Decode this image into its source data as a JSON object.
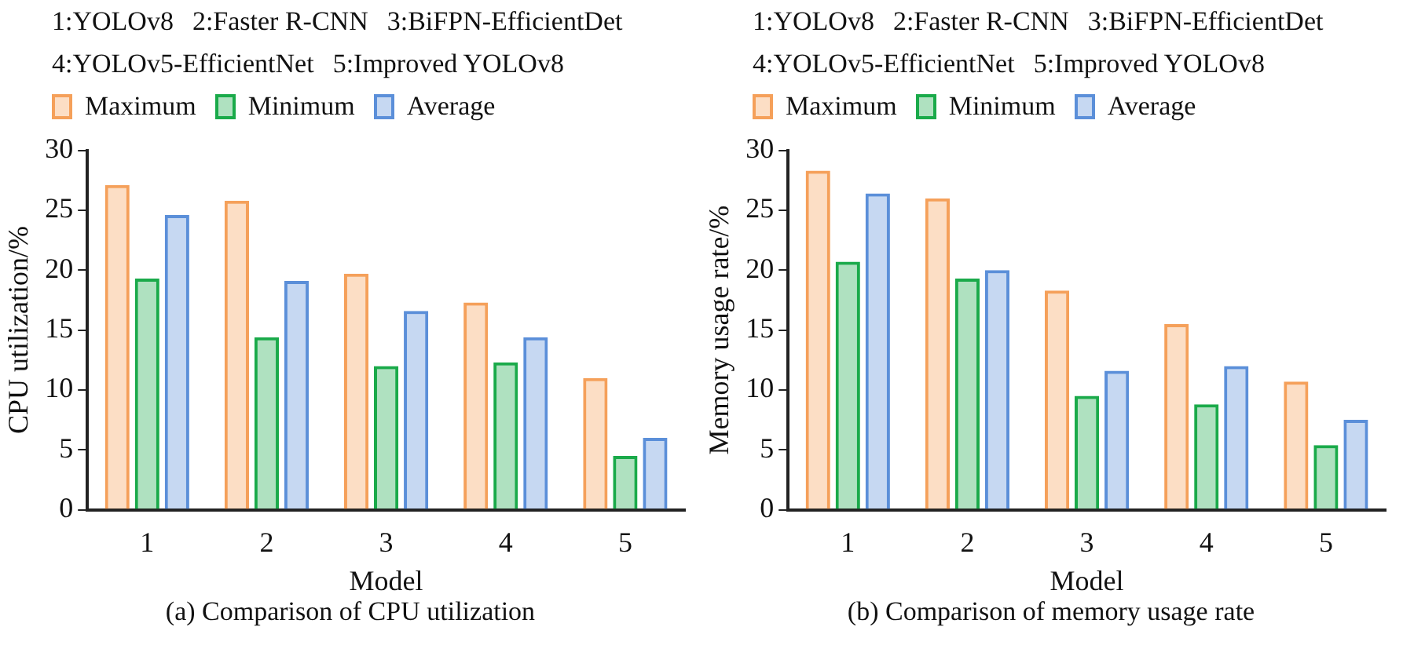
{
  "chart_data": [
    {
      "type": "bar",
      "title": "(a) Comparison of CPU utilization",
      "xlabel": "Model",
      "ylabel": "CPU utilization/%",
      "categories": [
        "1",
        "2",
        "3",
        "4",
        "5"
      ],
      "series": [
        {
          "name": "Maximum",
          "color": "#f5a05a",
          "values": [
            27.1,
            25.8,
            19.7,
            17.3,
            11.0
          ]
        },
        {
          "name": "Minimum",
          "color": "#1aaa4a",
          "values": [
            19.3,
            14.4,
            12.0,
            12.3,
            4.5
          ]
        },
        {
          "name": "Average",
          "color": "#5b8fd9",
          "values": [
            24.6,
            19.1,
            16.6,
            14.4,
            6.0
          ]
        }
      ],
      "annotations": [
        "1:YOLOv8",
        "2:Faster R-CNN",
        "3:BiFPN-EfficientDet",
        "4:YOLOv5-EfficientNet",
        "5:Improved YOLOv8"
      ],
      "ylim": [
        0,
        30
      ],
      "yticks": [
        0,
        5,
        10,
        15,
        20,
        25,
        30
      ],
      "grid": false,
      "legend": "top"
    },
    {
      "type": "bar",
      "title": "(b) Comparison of memory usage rate",
      "xlabel": "Model",
      "ylabel": "Memory usage rate/%",
      "categories": [
        "1",
        "2",
        "3",
        "4",
        "5"
      ],
      "series": [
        {
          "name": "Maximum",
          "color": "#f5a05a",
          "values": [
            28.3,
            26.0,
            18.3,
            15.5,
            10.7
          ]
        },
        {
          "name": "Minimum",
          "color": "#1aaa4a",
          "values": [
            20.7,
            19.3,
            9.5,
            8.8,
            5.4
          ]
        },
        {
          "name": "Average",
          "color": "#5b8fd9",
          "values": [
            26.4,
            20.0,
            11.6,
            12.0,
            7.5
          ]
        }
      ],
      "annotations": [
        "1:YOLOv8",
        "2:Faster R-CNN",
        "3:BiFPN-EfficientDet",
        "4:YOLOv5-EfficientNet",
        "5:Improved YOLOv8"
      ],
      "ylim": [
        0,
        30
      ],
      "yticks": [
        0,
        5,
        10,
        15,
        20,
        25,
        30
      ],
      "grid": false,
      "legend": "top"
    }
  ]
}
